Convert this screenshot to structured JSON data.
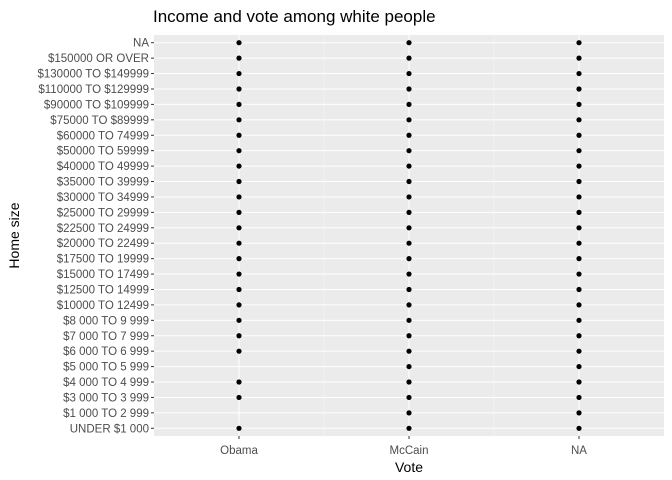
{
  "chart_data": {
    "type": "scatter",
    "title": "Income and vote among white people",
    "xlabel": "Vote",
    "ylabel": "Home size",
    "x_categories": [
      "Obama",
      "McCain",
      "NA"
    ],
    "y_categories": [
      "UNDER $1 000",
      "$1 000 TO 2 999",
      "$3 000 TO 3 999",
      "$4 000 TO 4 999",
      "$5 000 TO 5 999",
      "$6 000 TO 6 999",
      "$7 000 TO 7 999",
      "$8 000 TO 9 999",
      "$10000 TO 12499",
      "$12500 TO 14999",
      "$15000 TO 17499",
      "$17500 TO 19999",
      "$20000 TO 22499",
      "$22500 TO 24999",
      "$25000 TO 29999",
      "$30000 TO 34999",
      "$35000 TO 39999",
      "$40000 TO 49999",
      "$50000 TO 59999",
      "$60000 TO 74999",
      "$75000 TO $89999",
      "$90000 TO $109999",
      "$110000 TO $129999",
      "$130000 TO $149999",
      "$150000 OR OVER",
      "NA"
    ],
    "points": [
      {
        "x": "Obama",
        "y": "UNDER $1 000"
      },
      {
        "x": "Obama",
        "y": "$3 000 TO 3 999"
      },
      {
        "x": "Obama",
        "y": "$4 000 TO 4 999"
      },
      {
        "x": "Obama",
        "y": "$6 000 TO 6 999"
      },
      {
        "x": "Obama",
        "y": "$7 000 TO 7 999"
      },
      {
        "x": "Obama",
        "y": "$8 000 TO 9 999"
      },
      {
        "x": "Obama",
        "y": "$10000 TO 12499"
      },
      {
        "x": "Obama",
        "y": "$12500 TO 14999"
      },
      {
        "x": "Obama",
        "y": "$15000 TO 17499"
      },
      {
        "x": "Obama",
        "y": "$17500 TO 19999"
      },
      {
        "x": "Obama",
        "y": "$20000 TO 22499"
      },
      {
        "x": "Obama",
        "y": "$22500 TO 24999"
      },
      {
        "x": "Obama",
        "y": "$25000 TO 29999"
      },
      {
        "x": "Obama",
        "y": "$30000 TO 34999"
      },
      {
        "x": "Obama",
        "y": "$35000 TO 39999"
      },
      {
        "x": "Obama",
        "y": "$40000 TO 49999"
      },
      {
        "x": "Obama",
        "y": "$50000 TO 59999"
      },
      {
        "x": "Obama",
        "y": "$60000 TO 74999"
      },
      {
        "x": "Obama",
        "y": "$75000 TO $89999"
      },
      {
        "x": "Obama",
        "y": "$90000 TO $109999"
      },
      {
        "x": "Obama",
        "y": "$110000 TO $129999"
      },
      {
        "x": "Obama",
        "y": "$130000 TO $149999"
      },
      {
        "x": "Obama",
        "y": "$150000 OR OVER"
      },
      {
        "x": "Obama",
        "y": "NA"
      },
      {
        "x": "McCain",
        "y": "UNDER $1 000"
      },
      {
        "x": "McCain",
        "y": "$1 000 TO 2 999"
      },
      {
        "x": "McCain",
        "y": "$3 000 TO 3 999"
      },
      {
        "x": "McCain",
        "y": "$4 000 TO 4 999"
      },
      {
        "x": "McCain",
        "y": "$5 000 TO 5 999"
      },
      {
        "x": "McCain",
        "y": "$6 000 TO 6 999"
      },
      {
        "x": "McCain",
        "y": "$7 000 TO 7 999"
      },
      {
        "x": "McCain",
        "y": "$8 000 TO 9 999"
      },
      {
        "x": "McCain",
        "y": "$10000 TO 12499"
      },
      {
        "x": "McCain",
        "y": "$12500 TO 14999"
      },
      {
        "x": "McCain",
        "y": "$15000 TO 17499"
      },
      {
        "x": "McCain",
        "y": "$17500 TO 19999"
      },
      {
        "x": "McCain",
        "y": "$20000 TO 22499"
      },
      {
        "x": "McCain",
        "y": "$22500 TO 24999"
      },
      {
        "x": "McCain",
        "y": "$25000 TO 29999"
      },
      {
        "x": "McCain",
        "y": "$30000 TO 34999"
      },
      {
        "x": "McCain",
        "y": "$35000 TO 39999"
      },
      {
        "x": "McCain",
        "y": "$40000 TO 49999"
      },
      {
        "x": "McCain",
        "y": "$50000 TO 59999"
      },
      {
        "x": "McCain",
        "y": "$60000 TO 74999"
      },
      {
        "x": "McCain",
        "y": "$75000 TO $89999"
      },
      {
        "x": "McCain",
        "y": "$90000 TO $109999"
      },
      {
        "x": "McCain",
        "y": "$110000 TO $129999"
      },
      {
        "x": "McCain",
        "y": "$130000 TO $149999"
      },
      {
        "x": "McCain",
        "y": "$150000 OR OVER"
      },
      {
        "x": "McCain",
        "y": "NA"
      },
      {
        "x": "NA",
        "y": "UNDER $1 000"
      },
      {
        "x": "NA",
        "y": "$1 000 TO 2 999"
      },
      {
        "x": "NA",
        "y": "$3 000 TO 3 999"
      },
      {
        "x": "NA",
        "y": "$4 000 TO 4 999"
      },
      {
        "x": "NA",
        "y": "$5 000 TO 5 999"
      },
      {
        "x": "NA",
        "y": "$6 000 TO 6 999"
      },
      {
        "x": "NA",
        "y": "$7 000 TO 7 999"
      },
      {
        "x": "NA",
        "y": "$8 000 TO 9 999"
      },
      {
        "x": "NA",
        "y": "$10000 TO 12499"
      },
      {
        "x": "NA",
        "y": "$12500 TO 14999"
      },
      {
        "x": "NA",
        "y": "$15000 TO 17499"
      },
      {
        "x": "NA",
        "y": "$17500 TO 19999"
      },
      {
        "x": "NA",
        "y": "$20000 TO 22499"
      },
      {
        "x": "NA",
        "y": "$22500 TO 24999"
      },
      {
        "x": "NA",
        "y": "$25000 TO 29999"
      },
      {
        "x": "NA",
        "y": "$30000 TO 34999"
      },
      {
        "x": "NA",
        "y": "$35000 TO 39999"
      },
      {
        "x": "NA",
        "y": "$40000 TO 49999"
      },
      {
        "x": "NA",
        "y": "$50000 TO 59999"
      },
      {
        "x": "NA",
        "y": "$60000 TO 74999"
      },
      {
        "x": "NA",
        "y": "$75000 TO $89999"
      },
      {
        "x": "NA",
        "y": "$90000 TO $109999"
      },
      {
        "x": "NA",
        "y": "$110000 TO $129999"
      },
      {
        "x": "NA",
        "y": "$130000 TO $149999"
      },
      {
        "x": "NA",
        "y": "$150000 OR OVER"
      },
      {
        "x": "NA",
        "y": "NA"
      }
    ],
    "grid": true,
    "legend": "none",
    "colors": {
      "panel_background": "#ebebeb",
      "gridline": "#ffffff",
      "point": "#000000",
      "tick_text": "#4d4d4d",
      "title_text": "#000000"
    }
  }
}
